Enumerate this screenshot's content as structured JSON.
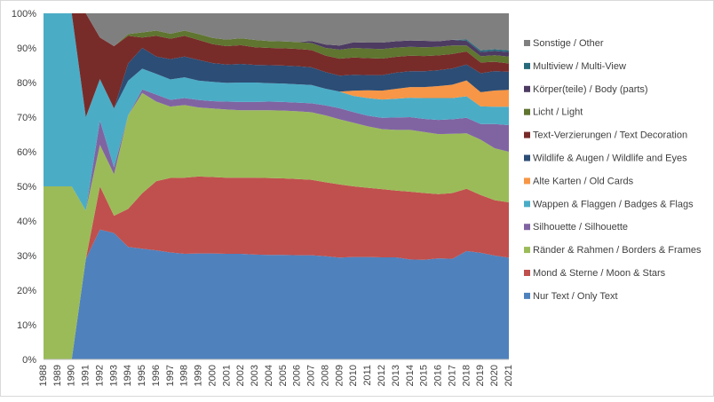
{
  "chart_data": {
    "type": "area",
    "stacked": "percent",
    "x": [
      "1988",
      "1989",
      "1990",
      "1991",
      "1992",
      "1993",
      "1994",
      "1995",
      "1996",
      "1997",
      "1998",
      "1999",
      "2000",
      "2001",
      "2002",
      "2003",
      "2004",
      "2005",
      "2006",
      "2007",
      "2008",
      "2009",
      "2010",
      "2011",
      "2012",
      "2013",
      "2014",
      "2015",
      "2016",
      "2017",
      "2018",
      "2019",
      "2020",
      "2021"
    ],
    "yticks": [
      "0%",
      "10%",
      "20%",
      "30%",
      "40%",
      "50%",
      "60%",
      "70%",
      "80%",
      "90%",
      "100%"
    ],
    "ylim": [
      0,
      100
    ],
    "grid": false,
    "legend_position": "right",
    "series": [
      {
        "name": "Nur Text / Only Text",
        "color": "#4f81bd",
        "values": [
          0,
          0,
          0,
          29,
          37.5,
          36.5,
          32.5,
          32,
          31.5,
          31.5,
          30.5,
          30.7,
          30.6,
          30.5,
          30.5,
          30.3,
          30.2,
          30.2,
          30.1,
          30.1,
          29.8,
          29.4,
          29.0,
          29.0,
          28.9,
          28.9,
          28.3,
          28.2,
          28.6,
          28.5,
          30.7,
          30.8,
          30.0,
          29.4
        ]
      },
      {
        "name": "Mond & Sterne / Moon & Stars",
        "color": "#c0504d",
        "values": [
          0,
          0,
          0,
          0,
          12.5,
          5,
          11,
          16,
          20,
          22,
          22,
          22.3,
          22.1,
          22,
          22,
          22.2,
          22.2,
          22.1,
          22.0,
          21.8,
          21.4,
          21.1,
          20.0,
          19.6,
          19.3,
          18.9,
          19.2,
          18.9,
          18.2,
          18.6,
          17.6,
          16.7,
          16.0,
          16.0
        ]
      },
      {
        "name": "Ränder & Rahmen / Borders & Frames",
        "color": "#9bbb59",
        "values": [
          50,
          50,
          50,
          14,
          12,
          12,
          27,
          29,
          23,
          21,
          21,
          20.0,
          19.8,
          19.7,
          19.5,
          19.5,
          19.6,
          19.6,
          19.6,
          19.5,
          19.3,
          18.8,
          18.0,
          17.4,
          17.0,
          17.2,
          17.5,
          17.3,
          17.0,
          16.8,
          15.7,
          16.0,
          15.0,
          14.6
        ]
      },
      {
        "name": "Silhouette / Silhouette",
        "color": "#8064a2",
        "values": [
          0,
          0,
          0,
          0,
          7,
          2,
          0,
          1,
          2,
          2,
          2,
          2.2,
          2.1,
          2.3,
          2.4,
          2.4,
          2.5,
          2.5,
          2.5,
          2.6,
          2.9,
          3.2,
          3.0,
          3.0,
          3.2,
          3.5,
          3.6,
          3.7,
          4.0,
          4.1,
          4.4,
          4.5,
          7.0,
          7.7
        ]
      },
      {
        "name": "Wappen & Flaggen / Badges & Flags",
        "color": "#4bacc6",
        "values": [
          50,
          50,
          50,
          27,
          12,
          17,
          10,
          6,
          6,
          6,
          6,
          5.6,
          5.6,
          5.4,
          5.6,
          5.6,
          5.3,
          5.3,
          5.3,
          5.3,
          4.8,
          4.8,
          4.6,
          5.0,
          5.2,
          5.3,
          5.5,
          5.9,
          6.2,
          6.0,
          6.1,
          5.1,
          5.0,
          5.3
        ]
      },
      {
        "name": "Alte Karten / Old Cards",
        "color": "#f79646",
        "values": [
          0,
          0,
          0,
          0,
          0,
          0,
          0,
          0,
          0,
          0,
          0,
          0,
          0,
          0,
          0,
          0,
          0,
          0,
          0,
          0,
          0,
          0,
          1.5,
          2.2,
          2.5,
          2.8,
          3.0,
          3.1,
          3.4,
          3.8,
          4.5,
          4.1,
          4.7,
          4.9
        ]
      },
      {
        "name": "Wildlife & Augen / Wildlife and Eyes",
        "color": "#2c4d75",
        "values": [
          0,
          0,
          0,
          0,
          0,
          0,
          5,
          6,
          5,
          6,
          6,
          6.0,
          5.4,
          5.3,
          5.4,
          5.1,
          5.2,
          5.2,
          5.2,
          5.1,
          4.8,
          4.6,
          4.5,
          4.3,
          4.4,
          4.6,
          4.5,
          4.5,
          4.5,
          4.6,
          4.5,
          5.5,
          5.6,
          5.2
        ]
      },
      {
        "name": "Text-Verzierungen / Text Decoration",
        "color": "#772c2a",
        "values": [
          0,
          0,
          0,
          30,
          12,
          18,
          8,
          3,
          6,
          6,
          6,
          5.8,
          5.5,
          5.3,
          5.4,
          5.1,
          5.0,
          5.0,
          5.0,
          5.0,
          4.8,
          4.9,
          4.9,
          4.8,
          4.7,
          4.5,
          4.4,
          4.3,
          4.2,
          4.1,
          3.7,
          3.1,
          2.7,
          2.4
        ]
      },
      {
        "name": "Licht / Light",
        "color": "#5f7530",
        "values": [
          0,
          0,
          0,
          0,
          0,
          0,
          0.5,
          1.5,
          1.5,
          1.5,
          1.5,
          1.7,
          1.8,
          1.9,
          2.0,
          2.1,
          2.0,
          2.0,
          2.0,
          2.0,
          2.2,
          2.6,
          2.7,
          2.7,
          2.7,
          2.6,
          2.5,
          2.5,
          2.4,
          2.4,
          1.7,
          1.8,
          1.9,
          2.0
        ]
      },
      {
        "name": "Körper(teile) / Body (parts)",
        "color": "#4d3b62",
        "values": [
          0,
          0,
          0,
          0,
          0,
          0,
          0,
          0,
          0,
          0,
          0,
          0,
          0,
          0,
          0,
          0,
          0,
          0,
          0,
          0.6,
          1.0,
          1.2,
          1.6,
          1.7,
          1.8,
          1.8,
          1.8,
          1.8,
          1.6,
          1.6,
          1.3,
          1.2,
          1.2,
          1.3
        ]
      },
      {
        "name": "Multiview / Multi-View",
        "color": "#276a7c",
        "values": [
          0,
          0,
          0,
          0,
          0,
          0,
          0,
          0,
          0,
          0,
          0,
          0,
          0,
          0,
          0,
          0,
          0,
          0,
          0,
          0,
          0,
          0,
          0,
          0,
          0,
          0,
          0,
          0,
          0,
          0,
          0.4,
          0.5,
          0.5,
          0.5
        ]
      },
      {
        "name": "Sonstige / Other",
        "color": "#7f7f7f",
        "values": [
          0,
          0,
          0,
          0,
          7,
          9.5,
          6,
          5.5,
          5,
          6,
          5,
          6.0,
          7.1,
          7.6,
          7.2,
          7.7,
          8.0,
          8.1,
          8.3,
          8.0,
          9.0,
          9.3,
          8.2,
          8.3,
          8.3,
          7.9,
          7.7,
          7.8,
          7.9,
          7.5,
          7.4,
          10.7,
          10.4,
          10.7
        ]
      }
    ]
  }
}
